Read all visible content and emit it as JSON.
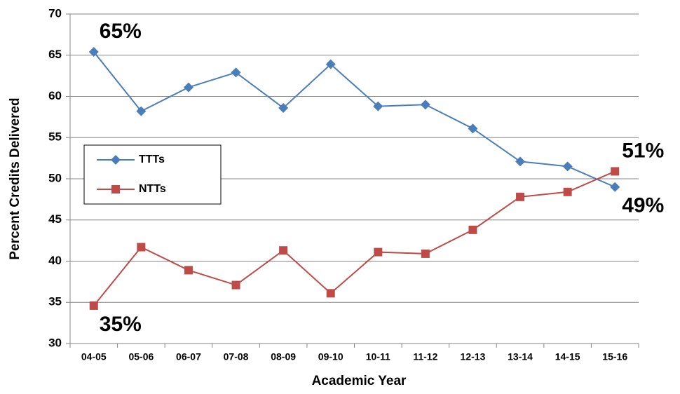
{
  "chart_data": {
    "type": "line",
    "x_label": "Academic Year",
    "y_label": "Percent Credits Delivered",
    "categories": [
      "04-05",
      "05-06",
      "06-07",
      "07-08",
      "08-09",
      "09-10",
      "10-11",
      "11-12",
      "12-13",
      "13-14",
      "14-15",
      "15-16"
    ],
    "series": [
      {
        "name": "TTTs",
        "color": "#4a7ebb",
        "marker": "diamond",
        "label_color": "#2e75b6",
        "values": [
          65.4,
          58.2,
          61.1,
          62.9,
          58.6,
          63.9,
          58.8,
          59.0,
          56.1,
          52.1,
          51.5,
          49.0
        ],
        "value_labels": [
          "65%",
          null,
          null,
          null,
          null,
          null,
          null,
          null,
          null,
          null,
          null,
          "49%"
        ]
      },
      {
        "name": "NTTs",
        "color": "#be4b48",
        "marker": "square",
        "label_color": "#c00000",
        "values": [
          34.6,
          41.7,
          38.9,
          37.1,
          41.3,
          36.1,
          41.1,
          40.9,
          43.8,
          47.8,
          48.4,
          50.9
        ],
        "value_labels": [
          "35%",
          null,
          null,
          null,
          null,
          null,
          null,
          null,
          null,
          null,
          null,
          "51%"
        ]
      }
    ],
    "ylim": [
      30,
      70
    ],
    "yticks": [
      30,
      35,
      40,
      45,
      50,
      55,
      60,
      65,
      70
    ],
    "grid": true,
    "legend": "center left"
  }
}
